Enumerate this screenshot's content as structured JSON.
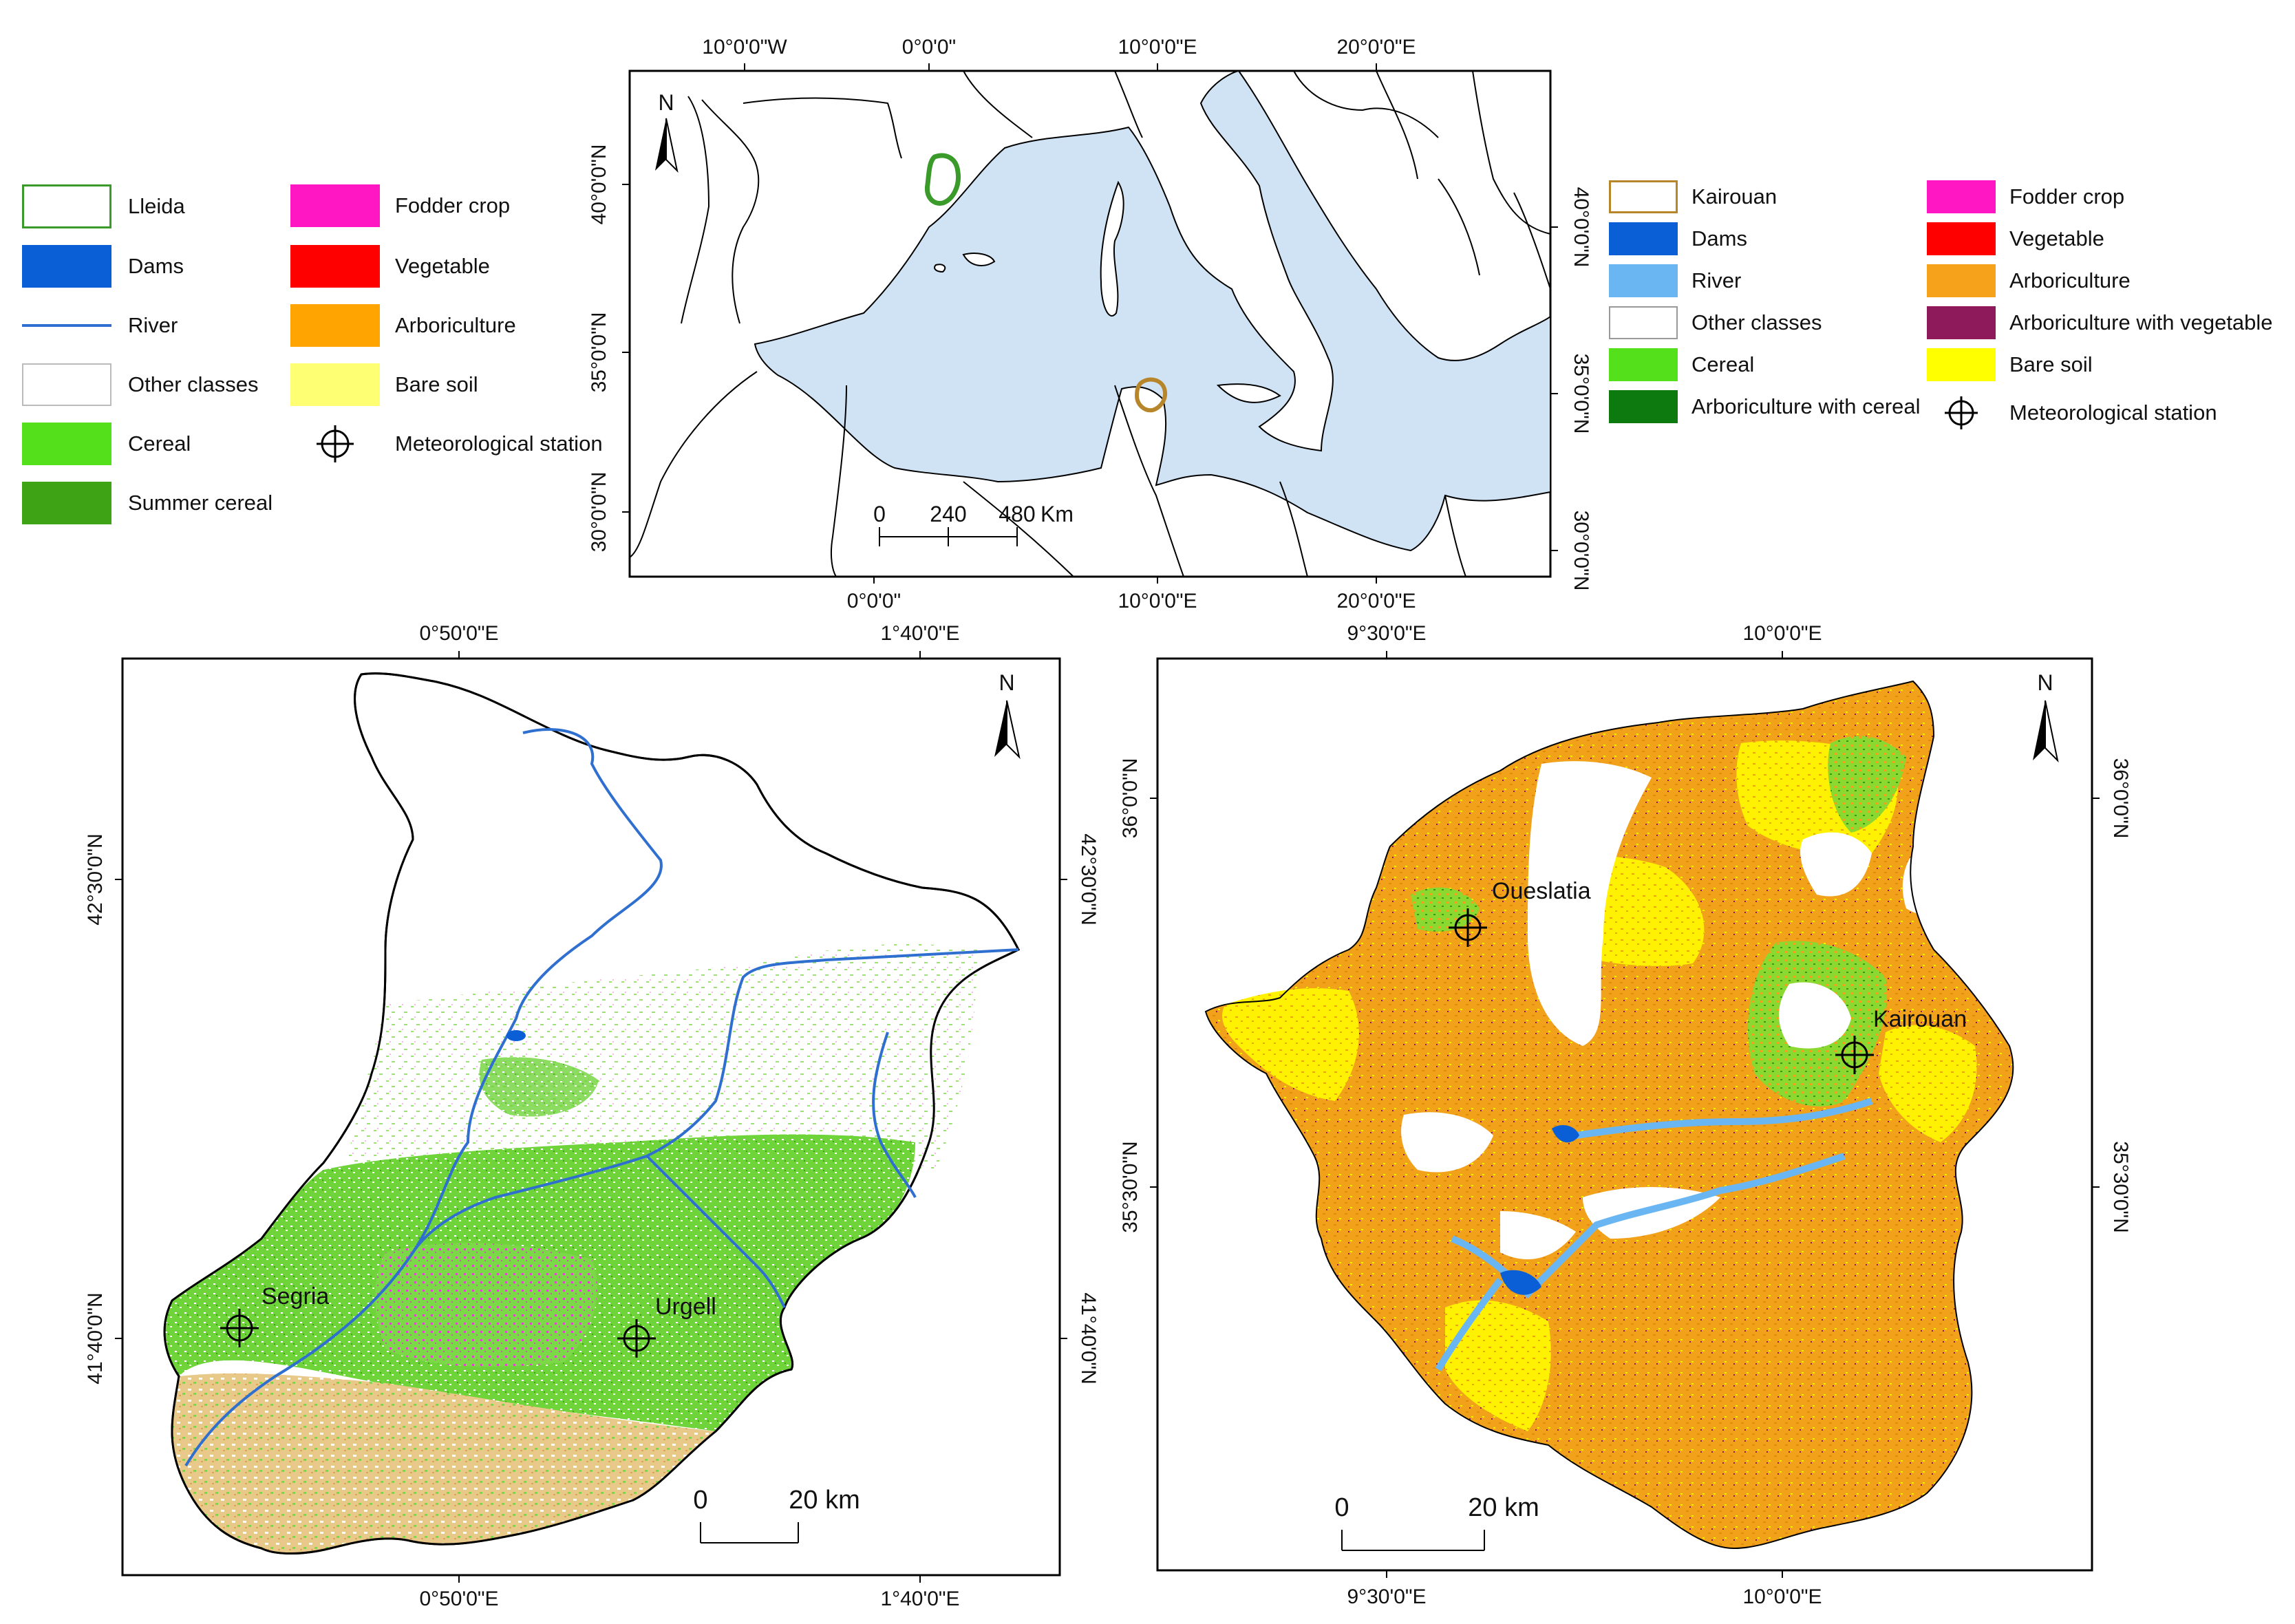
{
  "overview_map": {
    "top_ticks": [
      "10°0'0\"W",
      "0°0'0\"",
      "10°0'0\"E",
      "20°0'0\"E"
    ],
    "bottom_ticks": [
      "0°0'0\"",
      "10°0'0\"E",
      "20°0'0\"E"
    ],
    "left_ticks": [
      "40°0'0\"N",
      "35°0'0\"N",
      "30°0'0\"N"
    ],
    "right_ticks": [
      "40°0'0\"N",
      "35°0'0\"N",
      "30°0'0\"N"
    ],
    "north": "N",
    "scale_labels": [
      "0",
      "240",
      "480"
    ],
    "scale_unit": "Km",
    "sea_color": "#cfe3f5"
  },
  "lleida_legend": {
    "items": [
      {
        "label": "Lleida",
        "icon": "lleida-outline",
        "color": "#3a9a2a"
      },
      {
        "label": "Dams",
        "icon": "dams-swatch",
        "color": "#0a5fd6"
      },
      {
        "label": "River",
        "icon": "river-line",
        "color": "#2f6fd0"
      },
      {
        "label": "Other classes",
        "icon": "other-classes-swatch",
        "color": "#ffffff"
      },
      {
        "label": "Cereal",
        "icon": "cereal-swatch",
        "color": "#55e01c"
      },
      {
        "label": "Summer cereal",
        "icon": "summer-cereal-swatch",
        "color": "#3ea315"
      },
      {
        "label": "Fodder crop",
        "icon": "fodder-crop-swatch",
        "color": "#ff17c4"
      },
      {
        "label": "Vegetable",
        "icon": "vegetable-swatch",
        "color": "#ff0000"
      },
      {
        "label": "Arboriculture",
        "icon": "arboriculture-swatch",
        "color": "#ffa400"
      },
      {
        "label": "Bare soil",
        "icon": "bare-soil-swatch",
        "color": "#ffff73"
      },
      {
        "label": "Meteorological station",
        "icon": "station-icon",
        "color": "#000000"
      }
    ]
  },
  "kairouan_legend": {
    "items": [
      {
        "label": "Kairouan",
        "icon": "kairouan-outline",
        "color": "#b8862a"
      },
      {
        "label": "Dams",
        "icon": "dams-swatch",
        "color": "#0a5fd6"
      },
      {
        "label": "River",
        "icon": "river-swatch",
        "color": "#6ab6f2"
      },
      {
        "label": "Other classes",
        "icon": "other-classes-swatch",
        "color": "#ffffff"
      },
      {
        "label": "Cereal",
        "icon": "cereal-swatch",
        "color": "#55e01c"
      },
      {
        "label": "Arboriculture with cereal",
        "icon": "arboriculture-cereal-swatch",
        "color": "#0d7a10"
      },
      {
        "label": "Fodder crop",
        "icon": "fodder-crop-swatch",
        "color": "#ff17c4"
      },
      {
        "label": "Vegetable",
        "icon": "vegetable-swatch",
        "color": "#ff0000"
      },
      {
        "label": "Arboriculture",
        "icon": "arboriculture-swatch",
        "color": "#f7a21b"
      },
      {
        "label": "Arboriculture with vegetable",
        "icon": "arboriculture-vegetable-swatch",
        "color": "#8e1a5c"
      },
      {
        "label": "Bare soil",
        "icon": "bare-soil-swatch",
        "color": "#ffff00"
      },
      {
        "label": "Meteorological station",
        "icon": "station-icon",
        "color": "#000000"
      }
    ]
  },
  "lleida_map": {
    "top_ticks": [
      "0°50'0\"E",
      "1°40'0\"E"
    ],
    "bottom_ticks": [
      "0°50'0\"E",
      "1°40'0\"E"
    ],
    "left_ticks": [
      "42°30'0\"N",
      "41°40'0\"N"
    ],
    "right_ticks": [
      "42°30'0\"N",
      "41°40'0\"N"
    ],
    "north": "N",
    "stations": [
      "Segria",
      "Urgell"
    ],
    "scale_labels": [
      "0",
      "20 km"
    ]
  },
  "kairouan_map": {
    "top_ticks": [
      "9°30'0\"E",
      "10°0'0\"E"
    ],
    "bottom_ticks": [
      "9°30'0\"E",
      "10°0'0\"E"
    ],
    "left_ticks": [
      "36°0'0\"N",
      "35°30'0\"N"
    ],
    "right_ticks": [
      "36°0'0\"N",
      "35°30'0\"N"
    ],
    "north": "N",
    "stations": [
      "Oueslatia",
      "Kairouan"
    ],
    "scale_labels": [
      "0",
      "20 km"
    ]
  }
}
